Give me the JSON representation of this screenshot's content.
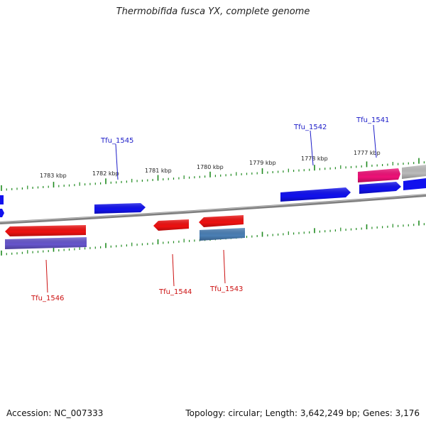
{
  "title": "Thermobifida fusca YX, complete genome",
  "accession_text": "Accession: NC_007333",
  "summary_text": "Topology: circular; Length: 3,642,249 bp; Genes: 3,176",
  "colors": {
    "backbone": "#7f7f7f",
    "tick": "#1f8a1f",
    "forward_label": "#1c1cc8",
    "reverse_label": "#cc1111",
    "forward_gene": "#1111ee",
    "reverse_gene": "#ee1111",
    "rrna": "#ee1177",
    "pseudo": "#bbbbbb",
    "cds_purple": "#6655cc",
    "cds_steel": "#4a7fb5"
  },
  "scale_labels": [
    "1777 kbp",
    "1778 kbp",
    "1779 kbp",
    "1780 kbp",
    "1781 kbp",
    "1782 kbp",
    "1783 kbp"
  ],
  "gene_labels": [
    {
      "name": "Tfu_1541",
      "strand": "forward"
    },
    {
      "name": "Tfu_1542",
      "strand": "forward"
    },
    {
      "name": "Tfu_1545",
      "strand": "forward"
    },
    {
      "name": "Tfu_1543",
      "strand": "reverse"
    },
    {
      "name": "Tfu_1544",
      "strand": "reverse"
    },
    {
      "name": "Tfu_1546",
      "strand": "reverse"
    }
  ]
}
